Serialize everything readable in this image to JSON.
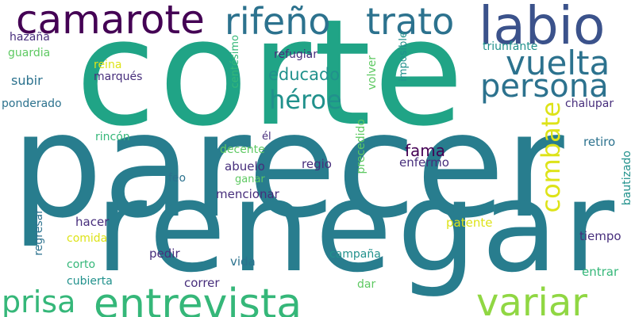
{
  "cloud": {
    "background": "#ffffff",
    "words": {
      "corte": "corte",
      "parecer": "parecer",
      "renegar": "renegar",
      "entrevista": "entrevista",
      "labio": "labio",
      "camarote": "camarote",
      "rifeno": "rifeño",
      "trato": "trato",
      "vuelta": "vuelta",
      "persona": "persona",
      "heroe": "héroe",
      "educado": "educado",
      "combate": "combate",
      "variar": "variar",
      "prisa": "prisa",
      "fama": "fama",
      "hazana": "hazaña",
      "guardia": "guardia",
      "subir": "subir",
      "ponderado": "ponderado",
      "reina": "reina",
      "marques": "marqués",
      "centesimo": "centésimo",
      "refugiar": "refugiar",
      "volver": "volver",
      "imposible": "imposible",
      "triunfante": "triunfante",
      "chalupar": "chalupar",
      "rincon": "rincón",
      "el": "él",
      "decente": "decente",
      "ganar": "ganar",
      "abuelo": "abuelo",
      "regio": "regio",
      "enfermo": "enfermo",
      "precedido": "precedido",
      "retiro": "retiro",
      "bautizado": "bautizado",
      "feo": "feo",
      "mencionar": "mencionar",
      "hacer": "hacer",
      "regresar": "regresar",
      "comida": "comida",
      "patente": "patente",
      "tiempo": "tiempo",
      "pedir": "pedir",
      "vida": "vida",
      "corto": "corto",
      "campana": "campaña",
      "cubierta": "cubierta",
      "correr": "correr",
      "dar": "dar",
      "entrar": "entrar"
    }
  }
}
